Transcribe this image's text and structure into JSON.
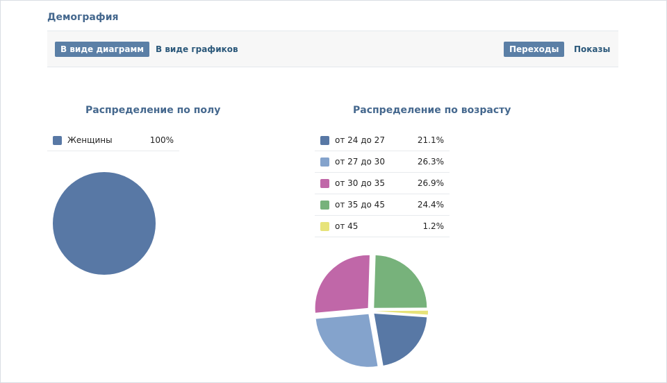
{
  "page": {
    "title": "Демография"
  },
  "toolbar": {
    "view_diagrams": "В виде диаграмм",
    "view_graphs": "В виде графиков",
    "transitions": "Переходы",
    "impressions": "Показы"
  },
  "colors": {
    "accent": "#5b7fa6",
    "title": "#45688e",
    "link": "#2b587a"
  },
  "chart_data": [
    {
      "type": "pie",
      "title": "Распределение по полу",
      "categories": [
        "Женщины"
      ],
      "values": [
        100
      ],
      "value_labels": [
        "100%"
      ],
      "colors": [
        "#5878a5"
      ]
    },
    {
      "type": "pie",
      "title": "Распределение по возрасту",
      "categories": [
        "от 24 до 27",
        "от 27 до 30",
        "от 30 до 35",
        "от 35 до 45",
        "от 45"
      ],
      "values": [
        21.1,
        26.3,
        26.9,
        24.4,
        1.2
      ],
      "value_labels": [
        "21.1%",
        "26.3%",
        "26.9%",
        "24.4%",
        "1.2%"
      ],
      "colors": [
        "#5878a5",
        "#84a3cc",
        "#c067a8",
        "#77b27b",
        "#e7e37a"
      ]
    }
  ]
}
